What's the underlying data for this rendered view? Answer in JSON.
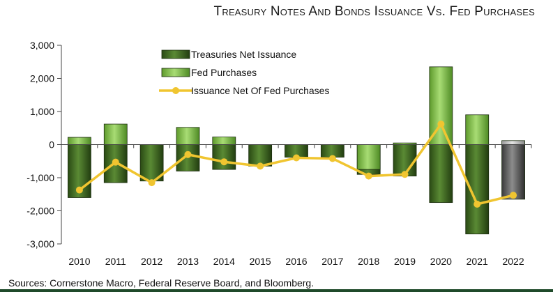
{
  "chart_data": {
    "type": "bar",
    "title": "Treasury Notes And Bonds Issuance Vs. Fed Purchases",
    "categories": [
      "2010",
      "2011",
      "2012",
      "2013",
      "2014",
      "2015",
      "2016",
      "2017",
      "2018",
      "2019",
      "2020",
      "2021",
      "2022"
    ],
    "series": [
      {
        "name": "Treasuries Net Issuance",
        "kind": "bar",
        "color": "#3b5e1f",
        "values": [
          -1600,
          -1150,
          -1100,
          -800,
          -750,
          -650,
          -380,
          -380,
          -900,
          -950,
          -1750,
          -2700,
          -1650
        ]
      },
      {
        "name": "Fed Purchases",
        "kind": "bar",
        "color": "#8fc45a",
        "values": [
          220,
          620,
          0,
          520,
          230,
          0,
          0,
          0,
          -750,
          50,
          2350,
          900,
          120
        ]
      },
      {
        "name": "Issuance Net Of Fed Purchases",
        "kind": "line",
        "color": "#f0c530",
        "values": [
          -1370,
          -530,
          -1150,
          -300,
          -520,
          -650,
          -400,
          -420,
          -950,
          -900,
          620,
          -1800,
          -1530
        ]
      }
    ],
    "ylim": [
      -3000,
      3000
    ],
    "yticks": [
      -3000,
      -2000,
      -1000,
      0,
      1000,
      2000,
      3000
    ],
    "ytick_labels": [
      "-3,000",
      "-2,000",
      "-1,000",
      "0",
      "1,000",
      "2,000",
      "3,000"
    ],
    "xlabel": "",
    "ylabel": "",
    "legend_position": "top-left",
    "grid": false
  },
  "footer": {
    "source": "Sources: Cornerstone Macro, Federal Reserve Board, and Bloomberg."
  }
}
